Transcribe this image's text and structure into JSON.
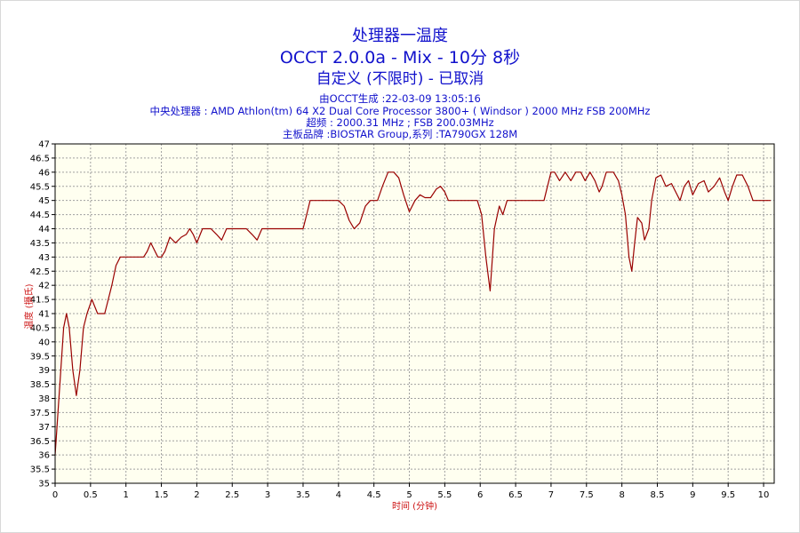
{
  "header": {
    "title_line1": "处理器一温度",
    "title_line2": "OCCT 2.0.0a - Mix - 10分 8秒",
    "title_line3": "自定义 (不限时) - 已取消",
    "info_line1": "由OCCT生成 :22-03-09 13:05:16",
    "info_line2": "中央处理器 : AMD Athlon(tm) 64 X2 Dual Core Processor 3800+ ( Windsor ) 2000 MHz FSB 200MHz",
    "info_line3": "超频 : 2000.31 MHz ; FSB 200.03MHz",
    "info_line4": "主板品牌 :BIOSTAR Group,系列 :TA790GX 128M"
  },
  "colors": {
    "title": "#1111cc",
    "plot_background": "#fffff0",
    "grid": "#a0a0a0",
    "series": "#990000",
    "axis_label": "#cc1111"
  },
  "chart_data": {
    "type": "line",
    "xlabel": "时间 (分钟)",
    "ylabel": "温度 (摄氏)",
    "xlim": [
      0,
      10.15
    ],
    "ylim": [
      35,
      47
    ],
    "x_ticks": [
      0,
      0.5,
      1,
      1.5,
      2,
      2.5,
      3,
      3.5,
      4,
      4.5,
      5,
      5.5,
      6,
      6.5,
      7,
      7.5,
      8,
      8.5,
      9,
      9.5,
      10
    ],
    "y_ticks": [
      35,
      35.5,
      36,
      36.5,
      37,
      37.5,
      38,
      38.5,
      39,
      39.5,
      40,
      40.5,
      41,
      41.5,
      42,
      42.5,
      43,
      43.5,
      44,
      44.5,
      45,
      45.5,
      46,
      46.5,
      47
    ],
    "grid": true,
    "series": [
      {
        "points": [
          [
            0,
            36
          ],
          [
            0.04,
            37.5
          ],
          [
            0.08,
            39
          ],
          [
            0.12,
            40.5
          ],
          [
            0.16,
            41
          ],
          [
            0.2,
            40.5
          ],
          [
            0.25,
            39
          ],
          [
            0.3,
            38.1
          ],
          [
            0.35,
            39
          ],
          [
            0.4,
            40.5
          ],
          [
            0.45,
            41
          ],
          [
            0.52,
            41.5
          ],
          [
            0.6,
            41
          ],
          [
            0.7,
            41
          ],
          [
            0.75,
            41.5
          ],
          [
            0.8,
            42
          ],
          [
            0.86,
            42.7
          ],
          [
            0.92,
            43
          ],
          [
            1.0,
            43
          ],
          [
            1.1,
            43
          ],
          [
            1.25,
            43
          ],
          [
            1.3,
            43.2
          ],
          [
            1.35,
            43.5
          ],
          [
            1.45,
            43
          ],
          [
            1.5,
            43
          ],
          [
            1.55,
            43.2
          ],
          [
            1.62,
            43.7
          ],
          [
            1.7,
            43.5
          ],
          [
            1.78,
            43.7
          ],
          [
            1.85,
            43.8
          ],
          [
            1.9,
            44
          ],
          [
            1.95,
            43.8
          ],
          [
            2.0,
            43.5
          ],
          [
            2.08,
            44
          ],
          [
            2.2,
            44
          ],
          [
            2.28,
            43.8
          ],
          [
            2.35,
            43.6
          ],
          [
            2.42,
            44
          ],
          [
            2.5,
            44
          ],
          [
            2.7,
            44
          ],
          [
            2.78,
            43.8
          ],
          [
            2.85,
            43.6
          ],
          [
            2.92,
            44
          ],
          [
            3.0,
            44
          ],
          [
            3.2,
            44
          ],
          [
            3.5,
            44
          ],
          [
            3.55,
            44.5
          ],
          [
            3.6,
            45
          ],
          [
            3.8,
            45
          ],
          [
            4.0,
            45
          ],
          [
            4.08,
            44.8
          ],
          [
            4.15,
            44.3
          ],
          [
            4.22,
            44
          ],
          [
            4.3,
            44.2
          ],
          [
            4.38,
            44.8
          ],
          [
            4.45,
            45
          ],
          [
            4.55,
            45
          ],
          [
            4.62,
            45.5
          ],
          [
            4.7,
            46
          ],
          [
            4.78,
            46
          ],
          [
            4.85,
            45.8
          ],
          [
            4.92,
            45.2
          ],
          [
            5.0,
            44.6
          ],
          [
            5.08,
            45
          ],
          [
            5.15,
            45.2
          ],
          [
            5.22,
            45.1
          ],
          [
            5.3,
            45.1
          ],
          [
            5.38,
            45.4
          ],
          [
            5.44,
            45.5
          ],
          [
            5.5,
            45.3
          ],
          [
            5.55,
            45
          ],
          [
            5.7,
            45
          ],
          [
            5.9,
            45
          ],
          [
            5.96,
            45
          ],
          [
            6.02,
            44.5
          ],
          [
            6.08,
            43
          ],
          [
            6.14,
            41.8
          ],
          [
            6.2,
            44
          ],
          [
            6.27,
            44.8
          ],
          [
            6.32,
            44.5
          ],
          [
            6.38,
            45
          ],
          [
            6.5,
            45
          ],
          [
            6.9,
            45
          ],
          [
            6.95,
            45.5
          ],
          [
            7.0,
            46
          ],
          [
            7.05,
            46
          ],
          [
            7.12,
            45.7
          ],
          [
            7.2,
            46
          ],
          [
            7.28,
            45.7
          ],
          [
            7.35,
            46
          ],
          [
            7.42,
            46
          ],
          [
            7.48,
            45.7
          ],
          [
            7.55,
            46
          ],
          [
            7.62,
            45.7
          ],
          [
            7.68,
            45.3
          ],
          [
            7.72,
            45.5
          ],
          [
            7.78,
            46
          ],
          [
            7.88,
            46
          ],
          [
            7.95,
            45.7
          ],
          [
            8.0,
            45.2
          ],
          [
            8.05,
            44.5
          ],
          [
            8.1,
            43
          ],
          [
            8.14,
            42.5
          ],
          [
            8.18,
            43.5
          ],
          [
            8.22,
            44.4
          ],
          [
            8.28,
            44.2
          ],
          [
            8.32,
            43.6
          ],
          [
            8.38,
            44
          ],
          [
            8.42,
            45
          ],
          [
            8.48,
            45.8
          ],
          [
            8.55,
            45.9
          ],
          [
            8.62,
            45.5
          ],
          [
            8.7,
            45.6
          ],
          [
            8.76,
            45.3
          ],
          [
            8.82,
            45
          ],
          [
            8.88,
            45.5
          ],
          [
            8.94,
            45.7
          ],
          [
            9.0,
            45.2
          ],
          [
            9.08,
            45.6
          ],
          [
            9.16,
            45.7
          ],
          [
            9.22,
            45.3
          ],
          [
            9.3,
            45.5
          ],
          [
            9.38,
            45.8
          ],
          [
            9.45,
            45.3
          ],
          [
            9.5,
            45
          ],
          [
            9.56,
            45.5
          ],
          [
            9.62,
            45.9
          ],
          [
            9.7,
            45.9
          ],
          [
            9.78,
            45.5
          ],
          [
            9.85,
            45
          ],
          [
            9.95,
            45
          ],
          [
            10.1,
            45
          ]
        ]
      }
    ]
  }
}
